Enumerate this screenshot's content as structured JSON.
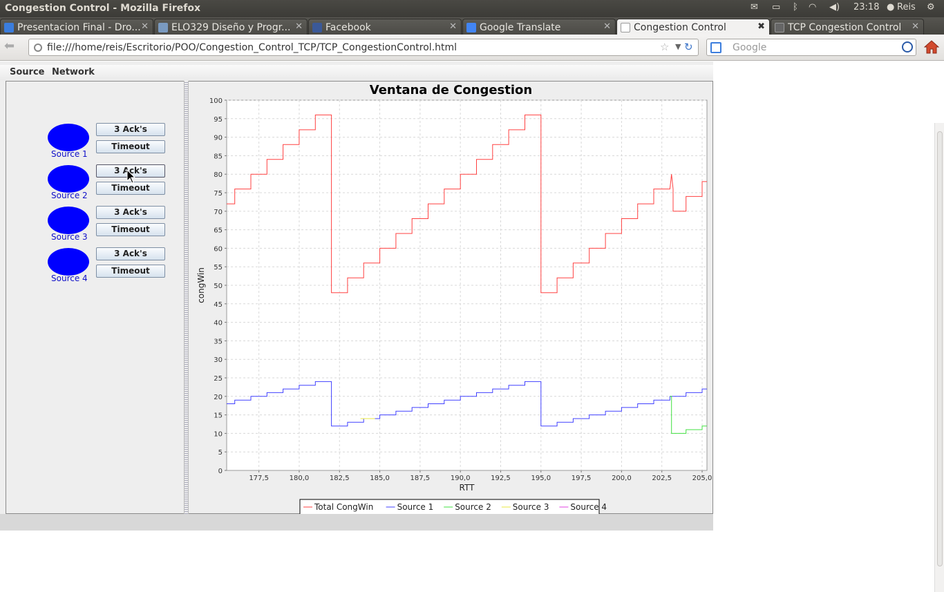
{
  "window": {
    "title": "Congestion Control - Mozilla Firefox",
    "clock": "23:18",
    "user": "Reis"
  },
  "tabs": [
    {
      "label": "Presentacion Final - Dro...",
      "icon": "dropbox-icon",
      "color": "#3b7ddd"
    },
    {
      "label": "ELO329 Diseño y Progr...",
      "icon": "site-icon",
      "color": "#7a9ac0"
    },
    {
      "label": "Facebook",
      "icon": "facebook-icon",
      "color": "#3b5998"
    },
    {
      "label": "Google Translate",
      "icon": "translate-icon",
      "color": "#4285f4"
    },
    {
      "label": "Congestion Control",
      "icon": "blank-page-icon",
      "color": "#ffffff",
      "active": true
    },
    {
      "label": "TCP Congestion Control",
      "icon": "blank-page-icon",
      "color": "#ffffff"
    }
  ],
  "nav": {
    "url": "file:///home/reis/Escritorio/POO/Congestion_Control_TCP/TCP_CongestionControl.html",
    "search_placeholder": "Google"
  },
  "menu": {
    "source": "Source",
    "network": "Network"
  },
  "sources": [
    {
      "label": "Source 1",
      "acks": "3 Ack's",
      "timeout": "Timeout"
    },
    {
      "label": "Source 2",
      "acks": "3 Ack's",
      "timeout": "Timeout"
    },
    {
      "label": "Source 3",
      "acks": "3 Ack's",
      "timeout": "Timeout"
    },
    {
      "label": "Source 4",
      "acks": "3 Ack's",
      "timeout": "Timeout"
    }
  ],
  "colors": {
    "ellipse": "#0000ff",
    "total": "#ff4040",
    "s1": "#4040ff",
    "s2": "#40e040",
    "s3": "#e8e840",
    "s4": "#e040e0"
  },
  "chart_data": {
    "type": "line",
    "title": "Ventana de Congestion",
    "xlabel": "RTT",
    "ylabel": "congWin",
    "xlim": [
      175.5,
      205.3
    ],
    "ylim": [
      0,
      100
    ],
    "xticks": [
      "177,5",
      "180,0",
      "182,5",
      "185,0",
      "187,5",
      "190,0",
      "192,5",
      "195,0",
      "197,5",
      "200,0",
      "202,5",
      "205,0"
    ],
    "yticks": [
      "0",
      "5",
      "10",
      "15",
      "20",
      "25",
      "30",
      "35",
      "40",
      "45",
      "50",
      "55",
      "60",
      "65",
      "70",
      "75",
      "80",
      "85",
      "90",
      "95",
      "100"
    ],
    "grid": true,
    "legend": "bottom",
    "series": [
      {
        "name": "Total CongWin",
        "color": "#ff4040",
        "x": [
          175.5,
          176,
          176,
          177,
          177,
          178,
          178,
          179,
          179,
          180,
          180,
          181,
          181,
          182,
          182,
          183,
          183,
          184,
          184,
          185,
          185,
          186,
          186,
          187,
          187,
          188,
          188,
          189,
          189,
          190,
          190,
          191,
          191,
          192,
          192,
          193,
          193,
          194,
          194,
          195,
          195,
          196,
          196,
          197,
          197,
          198,
          198,
          199,
          199,
          200,
          200,
          201,
          201,
          202,
          202,
          203,
          203.1,
          203.2,
          203.2,
          204,
          204,
          205,
          205,
          205.3
        ],
        "y": [
          72,
          72,
          76,
          76,
          80,
          80,
          84,
          84,
          88,
          88,
          92,
          92,
          96,
          96,
          48,
          48,
          52,
          52,
          56,
          56,
          60,
          60,
          64,
          64,
          68,
          68,
          72,
          72,
          76,
          76,
          80,
          80,
          84,
          84,
          88,
          88,
          92,
          92,
          96,
          96,
          48,
          48,
          52,
          52,
          56,
          56,
          60,
          60,
          64,
          64,
          68,
          68,
          72,
          72,
          76,
          76,
          80,
          76,
          70,
          70,
          74,
          74,
          78,
          78
        ]
      },
      {
        "name": "Source 1",
        "color": "#4040ff",
        "x": [
          175.5,
          176,
          176,
          177,
          177,
          178,
          178,
          179,
          179,
          180,
          180,
          181,
          181,
          182,
          182,
          183,
          183,
          184,
          184,
          185,
          185,
          186,
          186,
          187,
          187,
          188,
          188,
          189,
          189,
          190,
          190,
          191,
          191,
          192,
          192,
          193,
          193,
          194,
          194,
          195,
          195,
          196,
          196,
          197,
          197,
          198,
          198,
          199,
          199,
          200,
          200,
          201,
          201,
          202,
          202,
          203,
          203,
          204,
          204,
          205,
          205,
          205.3
        ],
        "y": [
          18,
          18,
          19,
          19,
          20,
          20,
          21,
          21,
          22,
          22,
          23,
          23,
          24,
          24,
          12,
          12,
          13,
          13,
          14,
          14,
          15,
          15,
          16,
          16,
          17,
          17,
          18,
          18,
          19,
          19,
          20,
          20,
          21,
          21,
          22,
          22,
          23,
          23,
          24,
          24,
          12,
          12,
          13,
          13,
          14,
          14,
          15,
          15,
          16,
          16,
          17,
          17,
          18,
          18,
          19,
          19,
          20,
          20,
          21,
          21,
          22,
          22
        ]
      },
      {
        "name": "Source 2",
        "color": "#40e040",
        "x": [
          203,
          203.1,
          203.1,
          204,
          204,
          205,
          205,
          205.3
        ],
        "y": [
          20,
          20,
          10,
          10,
          11,
          11,
          12,
          12
        ]
      },
      {
        "name": "Source 3",
        "color": "#e8e840",
        "x": [
          183.8,
          184.7
        ],
        "y": [
          14,
          14
        ]
      },
      {
        "name": "Source 4",
        "color": "#e040e0",
        "x": [],
        "y": []
      }
    ]
  }
}
